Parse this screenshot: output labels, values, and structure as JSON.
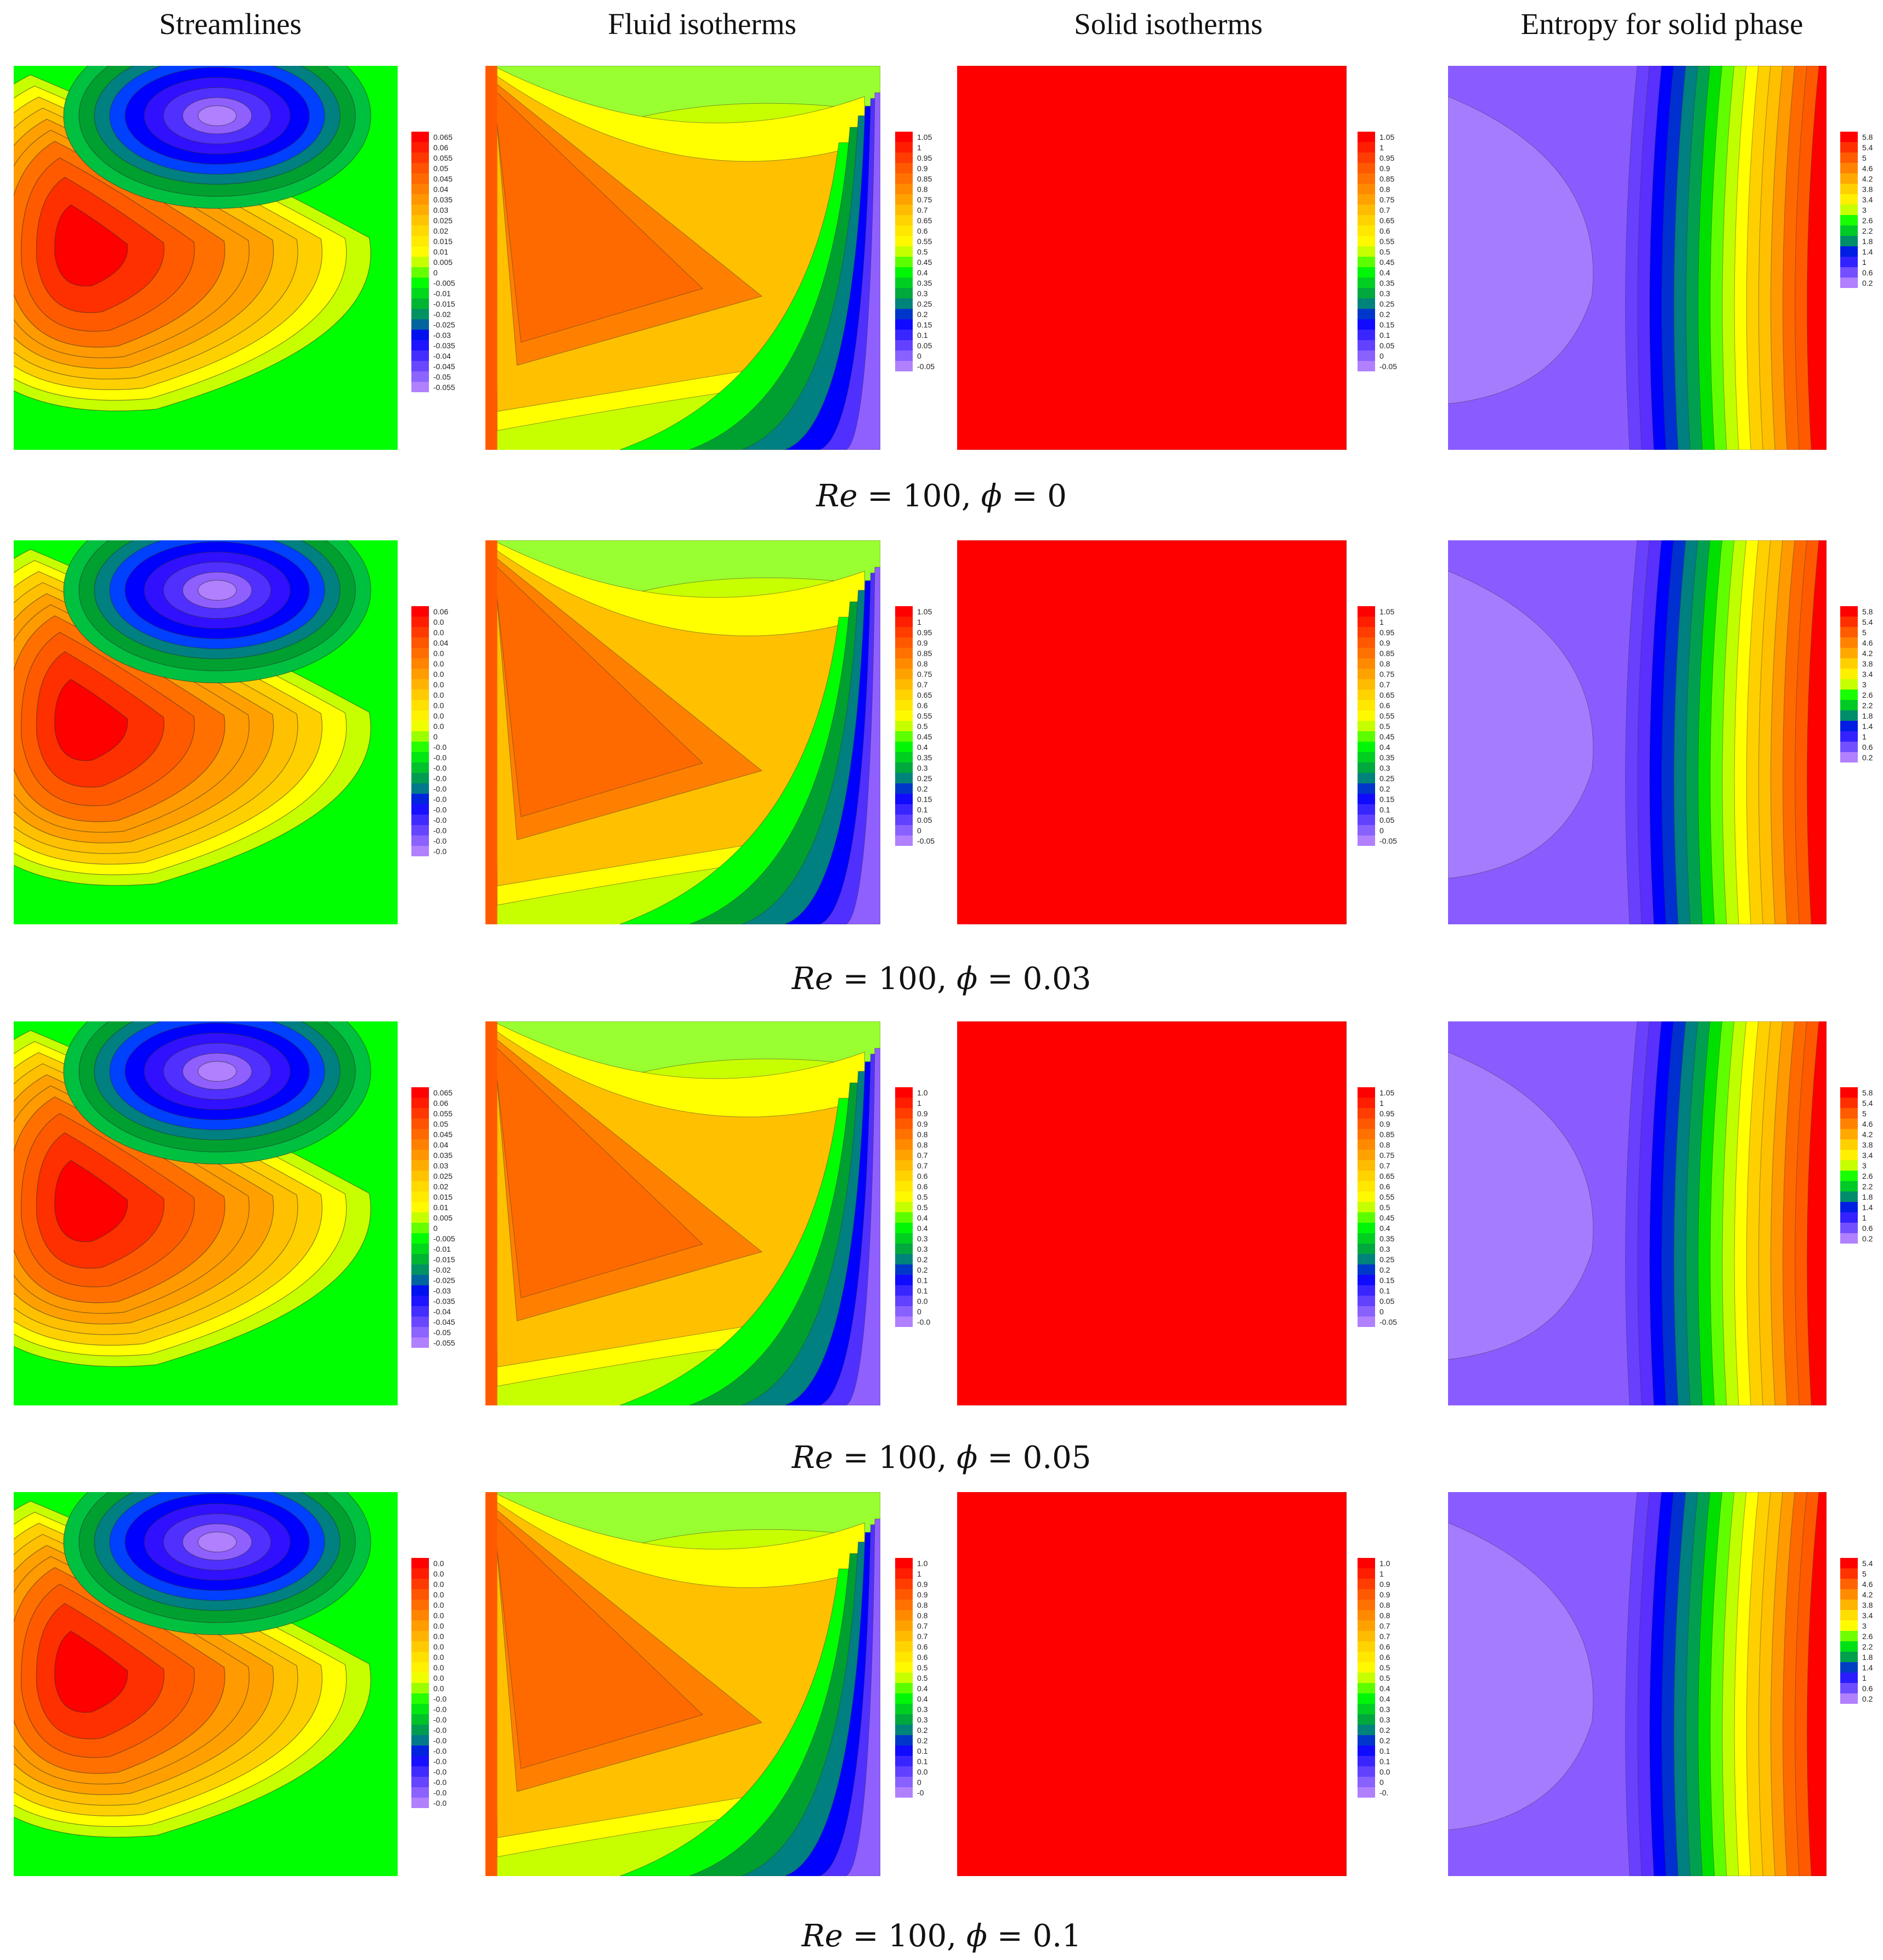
{
  "headers": {
    "streamlines": "Streamlines",
    "fluid": "Fluid isotherms",
    "solid": "Solid isotherms",
    "entropy": "Entropy for solid phase"
  },
  "rows": [
    {
      "caption_re": "Re",
      "caption_rest": " = 100, ",
      "caption_phi": "ϕ",
      "caption_val": " = 0",
      "legends": {
        "streamlines": [
          "0.065",
          "0.06",
          "0.055",
          "0.05",
          "0.045",
          "0.04",
          "0.035",
          "0.03",
          "0.025",
          "0.02",
          "0.015",
          "0.01",
          "0.005",
          "0",
          "-0.005",
          "-0.01",
          "-0.015",
          "-0.02",
          "-0.025",
          "-0.03",
          "-0.035",
          "-0.04",
          "-0.045",
          "-0.05",
          "-0.055"
        ],
        "fluid": [
          "1.05",
          "1",
          "0.95",
          "0.9",
          "0.85",
          "0.8",
          "0.75",
          "0.7",
          "0.65",
          "0.6",
          "0.55",
          "0.5",
          "0.45",
          "0.4",
          "0.35",
          "0.3",
          "0.25",
          "0.2",
          "0.15",
          "0.1",
          "0.05",
          "0",
          "-0.05"
        ],
        "solid": [
          "1.05",
          "1",
          "0.95",
          "0.9",
          "0.85",
          "0.8",
          "0.75",
          "0.7",
          "0.65",
          "0.6",
          "0.55",
          "0.5",
          "0.45",
          "0.4",
          "0.35",
          "0.3",
          "0.25",
          "0.2",
          "0.15",
          "0.1",
          "0.05",
          "0",
          "-0.05"
        ],
        "entropy": [
          "5.8",
          "5.4",
          "5",
          "4.6",
          "4.2",
          "3.8",
          "3.4",
          "3",
          "2.6",
          "2.2",
          "1.8",
          "1.4",
          "1",
          "0.6",
          "0.2"
        ]
      }
    },
    {
      "caption_re": "Re",
      "caption_rest": " = 100, ",
      "caption_phi": "ϕ",
      "caption_val": " = 0.03",
      "legends": {
        "streamlines": [
          "0.06",
          "0.0",
          "0.0",
          "0.04",
          "0.0",
          "0.0",
          "0.0",
          "0.0",
          "0.0",
          "0.0",
          "0.0",
          "0.0",
          "0",
          "-0.0",
          "-0.0",
          "-0.0",
          "-0.0",
          "-0.0",
          "-0.0",
          "-0.0",
          "-0.0",
          "-0.0",
          "-0.0",
          "-0.0"
        ],
        "fluid": [
          "1.05",
          "1",
          "0.95",
          "0.9",
          "0.85",
          "0.8",
          "0.75",
          "0.7",
          "0.65",
          "0.6",
          "0.55",
          "0.5",
          "0.45",
          "0.4",
          "0.35",
          "0.3",
          "0.25",
          "0.2",
          "0.15",
          "0.1",
          "0.05",
          "0",
          "-0.05"
        ],
        "solid": [
          "1.05",
          "1",
          "0.95",
          "0.9",
          "0.85",
          "0.8",
          "0.75",
          "0.7",
          "0.65",
          "0.6",
          "0.55",
          "0.5",
          "0.45",
          "0.4",
          "0.35",
          "0.3",
          "0.25",
          "0.2",
          "0.15",
          "0.1",
          "0.05",
          "0",
          "-0.05"
        ],
        "entropy": [
          "5.8",
          "5.4",
          "5",
          "4.6",
          "4.2",
          "3.8",
          "3.4",
          "3",
          "2.6",
          "2.2",
          "1.8",
          "1.4",
          "1",
          "0.6",
          "0.2"
        ]
      }
    },
    {
      "caption_re": "Re",
      "caption_rest": " = 100, ",
      "caption_phi": "ϕ",
      "caption_val": " = 0.05",
      "legends": {
        "streamlines": [
          "0.065",
          "0.06",
          "0.055",
          "0.05",
          "0.045",
          "0.04",
          "0.035",
          "0.03",
          "0.025",
          "0.02",
          "0.015",
          "0.01",
          "0.005",
          "0",
          "-0.005",
          "-0.01",
          "-0.015",
          "-0.02",
          "-0.025",
          "-0.03",
          "-0.035",
          "-0.04",
          "-0.045",
          "-0.05",
          "-0.055"
        ],
        "fluid": [
          "1.0",
          "1",
          "0.9",
          "0.9",
          "0.8",
          "0.8",
          "0.7",
          "0.7",
          "0.6",
          "0.6",
          "0.5",
          "0.5",
          "0.4",
          "0.4",
          "0.3",
          "0.3",
          "0.2",
          "0.2",
          "0.1",
          "0.1",
          "0.0",
          "0",
          "-0.0"
        ],
        "solid": [
          "1.05",
          "1",
          "0.95",
          "0.9",
          "0.85",
          "0.8",
          "0.75",
          "0.7",
          "0.65",
          "0.6",
          "0.55",
          "0.5",
          "0.45",
          "0.4",
          "0.35",
          "0.3",
          "0.25",
          "0.2",
          "0.15",
          "0.1",
          "0.05",
          "0",
          "-0.05"
        ],
        "entropy": [
          "5.8",
          "5.4",
          "5",
          "4.6",
          "4.2",
          "3.8",
          "3.4",
          "3",
          "2.6",
          "2.2",
          "1.8",
          "1.4",
          "1",
          "0.6",
          "0.2"
        ]
      }
    },
    {
      "caption_re": "Re",
      "caption_rest": " = 100, ",
      "caption_phi": "ϕ",
      "caption_val": " = 0.1",
      "legends": {
        "streamlines": [
          "0.0",
          "0.0",
          "0.0",
          "0.0",
          "0.0",
          "0.0",
          "0.0",
          "0.0",
          "0.0",
          "0.0",
          "0.0",
          "0.0",
          "0.0",
          "-0.0",
          "-0.0",
          "-0.0",
          "-0.0",
          "-0.0",
          "-0.0",
          "-0.0",
          "-0.0",
          "-0.0",
          "-0.0",
          "-0.0"
        ],
        "fluid": [
          "1.0",
          "1",
          "0.9",
          "0.9",
          "0.8",
          "0.8",
          "0.7",
          "0.7",
          "0.6",
          "0.6",
          "0.5",
          "0.5",
          "0.4",
          "0.4",
          "0.3",
          "0.3",
          "0.2",
          "0.2",
          "0.1",
          "0.1",
          "0.0",
          "0",
          "-0"
        ],
        "solid": [
          "1.0",
          "1",
          "0.9",
          "0.9",
          "0.8",
          "0.8",
          "0.7",
          "0.7",
          "0.6",
          "0.6",
          "0.5",
          "0.5",
          "0.4",
          "0.4",
          "0.3",
          "0.3",
          "0.2",
          "0.2",
          "0.1",
          "0.1",
          "0.0",
          "0",
          "-0."
        ],
        "entropy": [
          "5.4",
          "5",
          "4.6",
          "4.2",
          "3.8",
          "3.4",
          "3",
          "2.6",
          "2.2",
          "1.8",
          "1.4",
          "1",
          "0.6",
          "0.2"
        ]
      }
    }
  ],
  "colors": {
    "red": "#ff0000",
    "orange_red": "#ff5a00",
    "orange": "#ff9a00",
    "amber": "#ffc000",
    "yellow": "#ffff00",
    "yellow_green": "#a0ff00",
    "green": "#00ff00",
    "dark_green": "#00a030",
    "teal": "#008080",
    "blue": "#0000ff",
    "indigo": "#5030ff",
    "violet": "#9060ff",
    "lavender": "#b080ff"
  }
}
